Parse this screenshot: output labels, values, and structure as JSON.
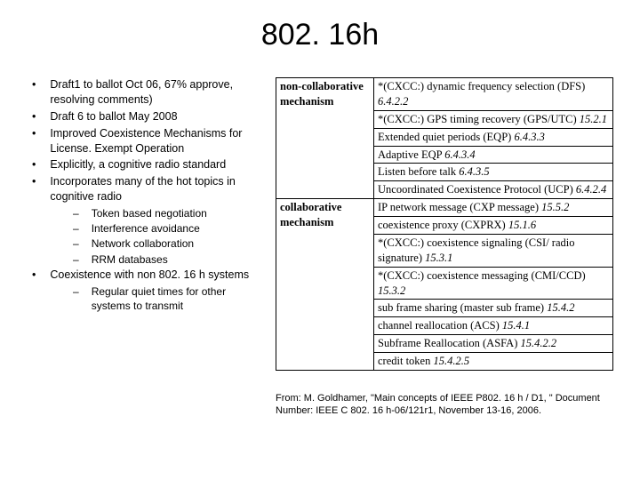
{
  "title": "802. 16h",
  "bullets": [
    "Draft1 to ballot Oct 06, 67% approve, resolving comments)",
    "Draft 6 to ballot May 2008",
    "Improved Coexistence Mechanisms for License. Exempt Operation",
    "Explicitly, a cognitive radio standard",
    "Incorporates many of the hot topics in cognitive radio"
  ],
  "sub1": [
    "Token based negotiation",
    "Interference avoidance",
    "Network collaboration",
    "RRM databases"
  ],
  "bullet6": "Coexistence with non 802. 16 h systems",
  "sub2": [
    "Regular quiet times for other systems to transmit"
  ],
  "table": {
    "labels": {
      "noncollab1": "non-collaborative",
      "noncollab2": "mechanism",
      "collab1": "collaborative",
      "collab2": "mechanism"
    },
    "noncollab_rows": [
      {
        "pre": "*(CXCC:) dynamic frequency selection (DFS)",
        "ref": "6.4.2.2"
      },
      {
        "pre": "*(CXCC:) GPS timing recovery (GPS/UTC)",
        "ref": "15.2.1"
      },
      {
        "pre": "Extended quiet periods (EQP)",
        "ref": "6.4.3.3"
      },
      {
        "pre": "Adaptive EQP",
        "ref": "6.4.3.4"
      },
      {
        "pre": "Listen before talk",
        "ref": "6.4.3.5"
      },
      {
        "pre": "Uncoordinated Coexistence Protocol (UCP)",
        "ref": "6.4.2.4"
      }
    ],
    "collab_rows": [
      {
        "pre": "IP network message (CXP message)",
        "ref": "15.5.2"
      },
      {
        "pre": "coexistence proxy (CXPRX)",
        "ref": "15.1.6"
      },
      {
        "pre": "*(CXCC:) coexistence signaling (CSI/ radio signature)",
        "ref": "15.3.1"
      },
      {
        "pre": "*(CXCC:) coexistence messaging (CMI/CCD)",
        "ref": "15.3.2"
      },
      {
        "pre": "sub frame sharing (master sub frame)",
        "ref": "15.4.2"
      },
      {
        "pre": "channel reallocation (ACS)",
        "ref": "15.4.1"
      },
      {
        "pre": "Subframe Reallocation (ASFA)",
        "ref": "15.4.2.2"
      },
      {
        "pre": "credit token",
        "ref": "15.4.2.5"
      }
    ]
  },
  "citation": "From: M. Goldhamer, \"Main concepts of IEEE P802. 16 h / D1, \" Document Number: IEEE C 802. 16 h-06/121r1, November 13-16, 2006."
}
